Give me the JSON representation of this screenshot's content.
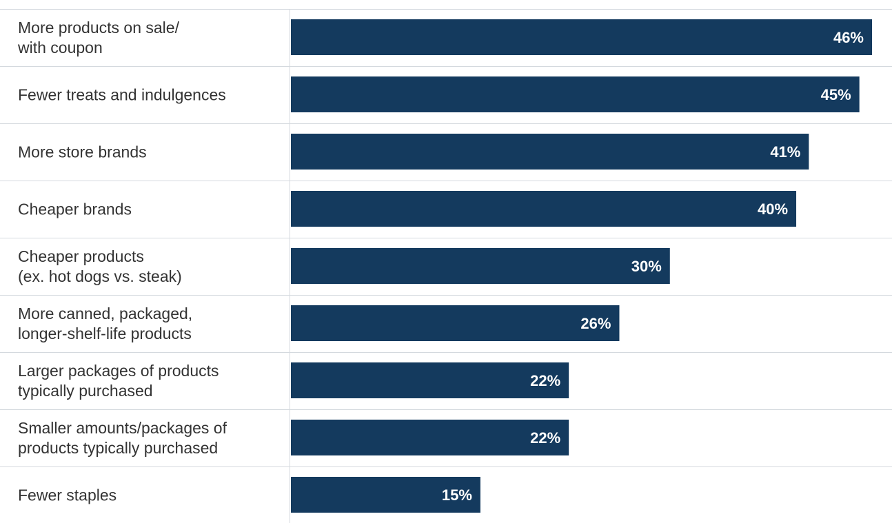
{
  "colors": {
    "bar": "#143a5e",
    "row_divider": "#d4d9de",
    "label_text": "#333333",
    "value_text": "#ffffff"
  },
  "chart_data": {
    "type": "bar",
    "orientation": "horizontal",
    "title": "",
    "xlabel": "",
    "ylabel": "",
    "xlim": [
      0,
      46
    ],
    "grid": false,
    "legend": "none",
    "categories": [
      [
        "More products on sale/",
        "with coupon"
      ],
      [
        "Fewer treats and indulgences"
      ],
      [
        "More store brands"
      ],
      [
        "Cheaper brands"
      ],
      [
        "Cheaper products",
        "(ex. hot dogs vs. steak)"
      ],
      [
        "More canned, packaged,",
        "longer-shelf-life products"
      ],
      [
        "Larger packages of products",
        "typically purchased"
      ],
      [
        "Smaller amounts/packages of",
        "products typically purchased"
      ],
      [
        "Fewer staples"
      ]
    ],
    "values": [
      46,
      45,
      41,
      40,
      30,
      26,
      22,
      22,
      15
    ],
    "value_labels": [
      "46%",
      "45%",
      "41%",
      "40%",
      "30%",
      "26%",
      "22%",
      "22%",
      "15%"
    ]
  }
}
